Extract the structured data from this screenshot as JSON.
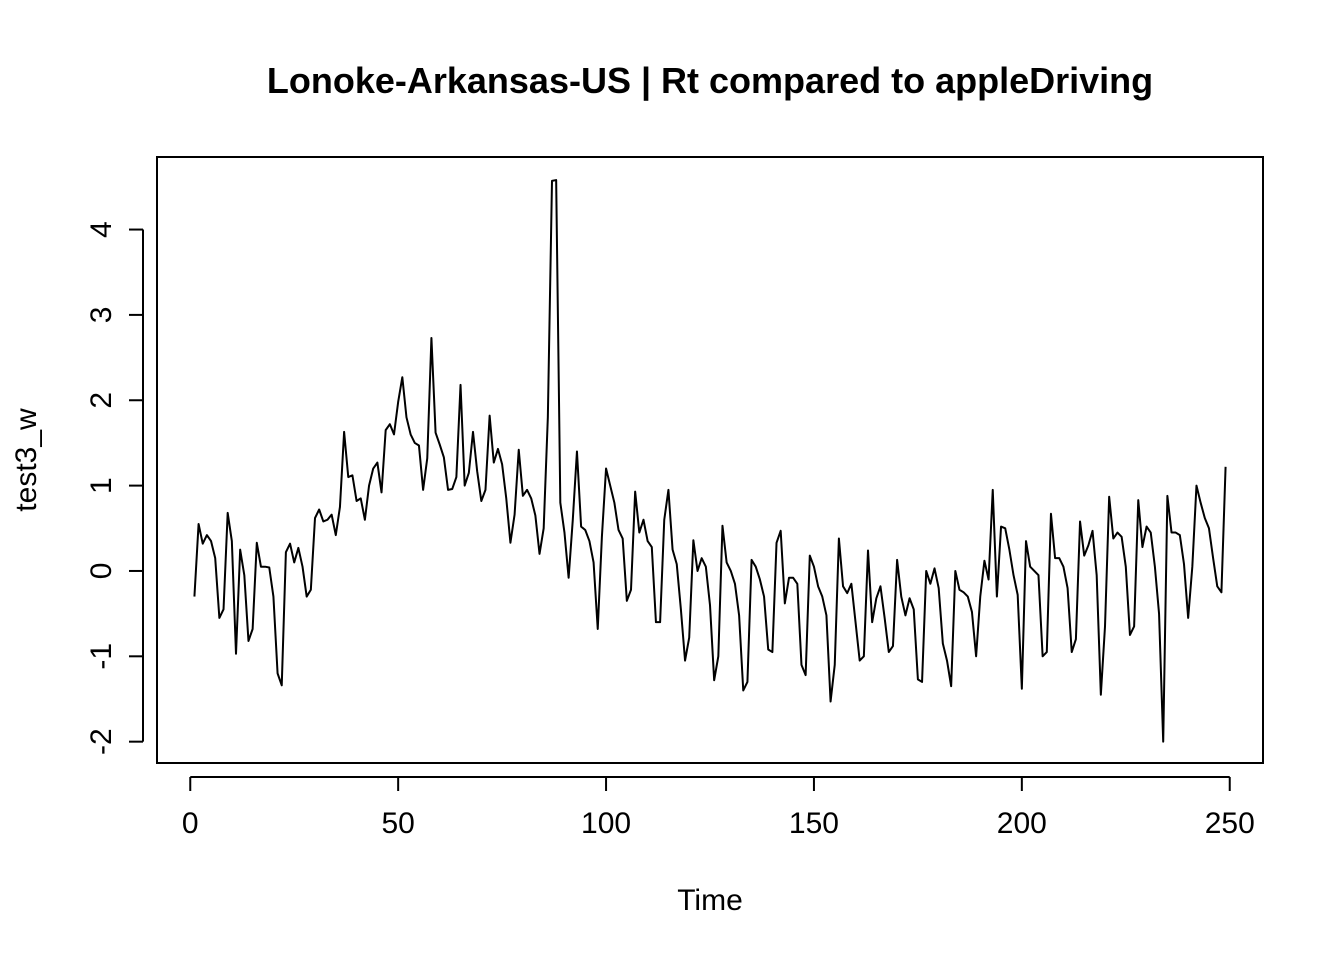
{
  "chart_data": {
    "type": "line",
    "title": "Lonoke-Arkansas-US | Rt compared to appleDriving",
    "xlabel": "Time",
    "ylabel": "test3_w",
    "xlim": [
      -8,
      258
    ],
    "ylim": [
      -2.25,
      4.85
    ],
    "xticks": [
      0,
      50,
      100,
      150,
      200,
      250
    ],
    "yticks": [
      -2,
      -1,
      0,
      1,
      2,
      3,
      4
    ],
    "xtick_labels": [
      "0",
      "50",
      "100",
      "150",
      "200",
      "250"
    ],
    "ytick_labels": [
      "-2",
      "-1",
      "0",
      "1",
      "2",
      "3",
      "4"
    ],
    "grid": false,
    "line_color": "#000000",
    "series": [
      {
        "x_start": 1,
        "values": [
          -0.3,
          0.55,
          0.32,
          0.42,
          0.35,
          0.15,
          -0.55,
          -0.45,
          0.68,
          0.35,
          -0.97,
          0.25,
          -0.05,
          -0.82,
          -0.68,
          0.33,
          0.05,
          0.05,
          0.04,
          -0.3,
          -1.2,
          -1.34,
          0.22,
          0.32,
          0.1,
          0.27,
          0.05,
          -0.3,
          -0.22,
          0.62,
          0.72,
          0.58,
          0.6,
          0.66,
          0.42,
          0.75,
          1.63,
          1.1,
          1.12,
          0.82,
          0.85,
          0.6,
          1.0,
          1.2,
          1.27,
          0.92,
          1.65,
          1.72,
          1.6,
          1.98,
          2.27,
          1.8,
          1.6,
          1.5,
          1.47,
          0.95,
          1.32,
          2.73,
          1.62,
          1.48,
          1.33,
          0.95,
          0.96,
          1.1,
          2.18,
          1.0,
          1.15,
          1.63,
          1.17,
          0.82,
          0.95,
          1.82,
          1.27,
          1.43,
          1.25,
          0.85,
          0.33,
          0.66,
          1.42,
          0.88,
          0.95,
          0.85,
          0.65,
          0.2,
          0.5,
          1.8,
          4.57,
          4.58,
          0.8,
          0.45,
          -0.08,
          0.6,
          1.4,
          0.52,
          0.48,
          0.35,
          0.1,
          -0.68,
          0.4,
          1.2,
          1.0,
          0.8,
          0.48,
          0.38,
          -0.35,
          -0.22,
          0.93,
          0.45,
          0.6,
          0.35,
          0.28,
          -0.6,
          -0.6,
          0.6,
          0.95,
          0.25,
          0.08,
          -0.45,
          -1.05,
          -0.78,
          0.36,
          0.0,
          0.15,
          0.05,
          -0.4,
          -1.28,
          -1.0,
          0.53,
          0.1,
          0.0,
          -0.15,
          -0.52,
          -1.4,
          -1.3,
          0.13,
          0.05,
          -0.1,
          -0.3,
          -0.92,
          -0.95,
          0.33,
          0.47,
          -0.38,
          -0.08,
          -0.08,
          -0.15,
          -1.1,
          -1.22,
          0.18,
          0.05,
          -0.18,
          -0.3,
          -0.52,
          -1.53,
          -1.1,
          0.38,
          -0.18,
          -0.26,
          -0.15,
          -0.6,
          -1.05,
          -1.0,
          0.24,
          -0.6,
          -0.32,
          -0.18,
          -0.55,
          -0.95,
          -0.88,
          0.13,
          -0.3,
          -0.52,
          -0.32,
          -0.45,
          -1.27,
          -1.3,
          0.0,
          -0.15,
          0.03,
          -0.2,
          -0.85,
          -1.05,
          -1.35,
          0.0,
          -0.22,
          -0.25,
          -0.3,
          -0.48,
          -1.0,
          -0.3,
          0.12,
          -0.1,
          0.95,
          -0.3,
          0.52,
          0.5,
          0.25,
          -0.05,
          -0.28,
          -1.38,
          0.35,
          0.05,
          0.0,
          -0.05,
          -1.0,
          -0.95,
          0.67,
          0.15,
          0.15,
          0.05,
          -0.2,
          -0.95,
          -0.8,
          0.58,
          0.18,
          0.3,
          0.47,
          -0.05,
          -1.45,
          -0.65,
          0.87,
          0.38,
          0.45,
          0.4,
          0.05,
          -0.75,
          -0.65,
          0.83,
          0.28,
          0.52,
          0.45,
          0.05,
          -0.5,
          -2.0,
          0.88,
          0.45,
          0.45,
          0.42,
          0.08,
          -0.55,
          0.05,
          1.0,
          0.8,
          0.62,
          0.5,
          0.15,
          -0.18,
          -0.25,
          1.22
        ]
      }
    ]
  }
}
